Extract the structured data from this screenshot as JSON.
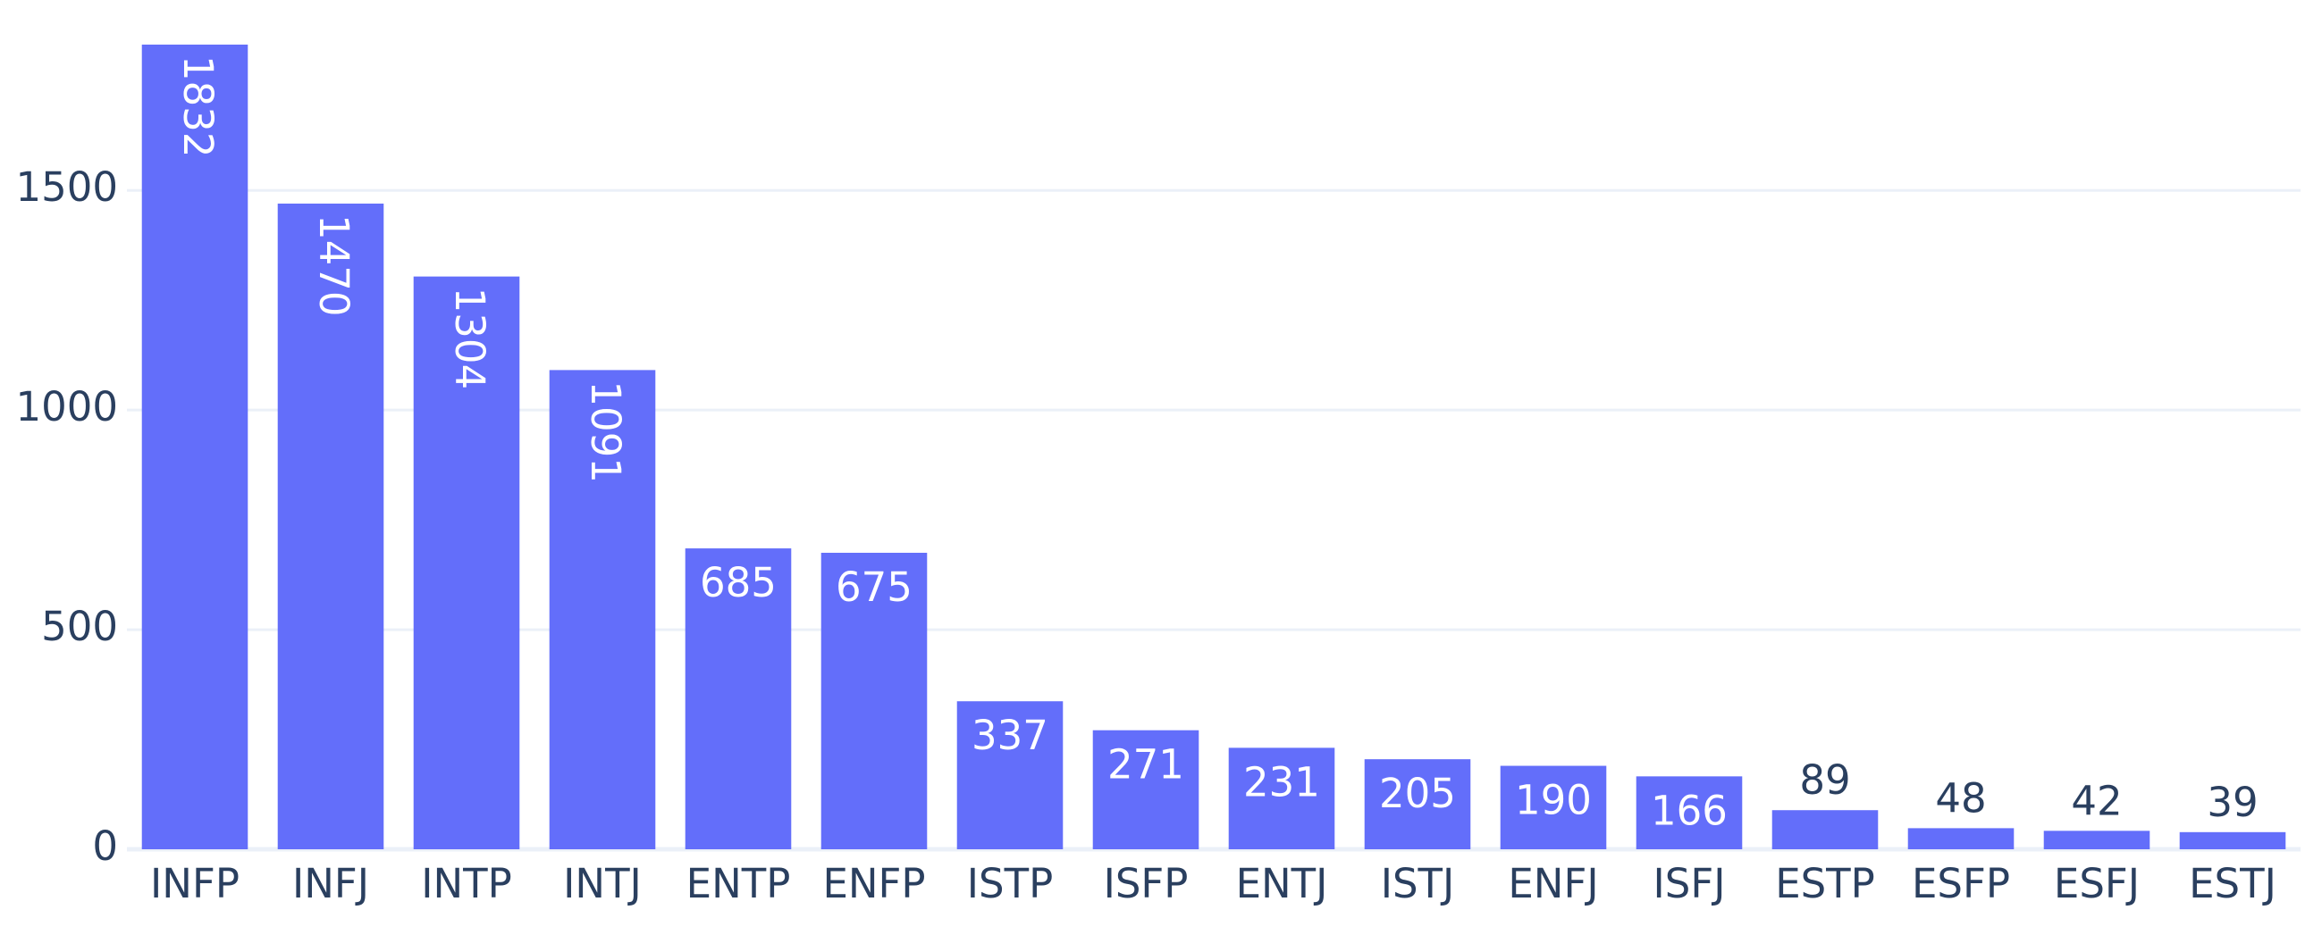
{
  "chart_data": {
    "type": "bar",
    "categories": [
      "INFP",
      "INFJ",
      "INTP",
      "INTJ",
      "ENTP",
      "ENFP",
      "ISTP",
      "ISFP",
      "ENTJ",
      "ISTJ",
      "ENFJ",
      "ISFJ",
      "ESTP",
      "ESFP",
      "ESFJ",
      "ESTJ"
    ],
    "values": [
      1832,
      1470,
      1304,
      1091,
      685,
      675,
      337,
      271,
      231,
      205,
      190,
      166,
      89,
      48,
      42,
      39
    ],
    "color": "#636efa",
    "ylim": [
      0,
      1840
    ],
    "yticks": [
      0,
      500,
      1000,
      1500
    ],
    "grid": true
  }
}
